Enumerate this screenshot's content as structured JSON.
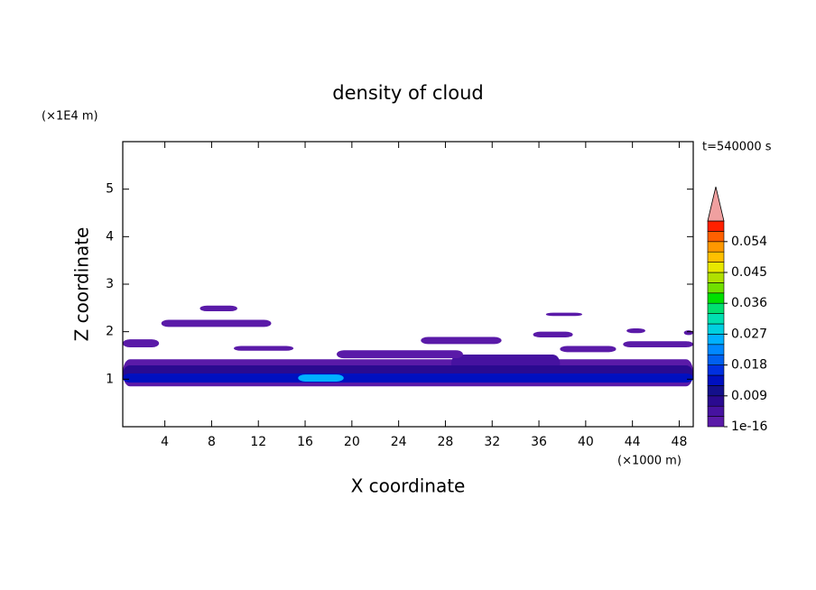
{
  "chart_data": {
    "type": "contour",
    "title": "density of cloud",
    "xlabel": "X coordinate",
    "ylabel": "Z coordinate",
    "xunit": "(×1000 m)",
    "yunit": "(×1E4 m)",
    "time_label": "t=540000 s",
    "xlim": [
      0.4,
      49.2
    ],
    "ylim": [
      0,
      6
    ],
    "xticks": [
      4,
      8,
      12,
      16,
      20,
      24,
      28,
      32,
      36,
      40,
      44,
      48
    ],
    "yticks": [
      1,
      2,
      3,
      4,
      5
    ],
    "colorbar": {
      "lim": [
        1e-16,
        0.06
      ],
      "ticks": [
        1e-16,
        0.009,
        0.018,
        0.027,
        0.036,
        0.045,
        0.054
      ],
      "colors": [
        "#5a1aa8",
        "#4612a0",
        "#2a0a90",
        "#14108c",
        "#0010c0",
        "#0030e0",
        "#0060f0",
        "#0088ff",
        "#00b0ff",
        "#00d0e0",
        "#00e0b0",
        "#00e070",
        "#00e000",
        "#70e000",
        "#b0e000",
        "#e8e800",
        "#ffc000",
        "#ff9800",
        "#ff6000",
        "#ff2000"
      ],
      "extend_color": "#f0a0a0"
    },
    "patches": [
      {
        "x0": 0.4,
        "x1": 49.2,
        "z0": 0.85,
        "z1": 1.42,
        "value": 0.001
      },
      {
        "x0": 28.5,
        "x1": 37.8,
        "z0": 1.14,
        "z1": 1.52,
        "value": 0.004
      },
      {
        "x0": 0.4,
        "x1": 49.2,
        "z0": 0.93,
        "z1": 1.29,
        "value": 0.007
      },
      {
        "x0": 0.4,
        "x1": 49.2,
        "z0": 0.93,
        "z1": 1.12,
        "value": 0.013
      },
      {
        "x0": 15.4,
        "x1": 19.3,
        "z0": 0.95,
        "z1": 1.1,
        "value": 0.025
      },
      {
        "x0": 7.0,
        "x1": 10.2,
        "z0": 2.43,
        "z1": 2.55,
        "value": 0.001
      },
      {
        "x0": 3.7,
        "x1": 13.1,
        "z0": 2.1,
        "z1": 2.25,
        "value": 0.001
      },
      {
        "x0": 0.4,
        "x1": 3.5,
        "z0": 1.67,
        "z1": 1.84,
        "value": 0.001
      },
      {
        "x0": 9.9,
        "x1": 15.0,
        "z0": 1.6,
        "z1": 1.7,
        "value": 0.001
      },
      {
        "x0": 18.7,
        "x1": 29.5,
        "z0": 1.44,
        "z1": 1.61,
        "value": 0.001
      },
      {
        "x0": 25.9,
        "x1": 32.8,
        "z0": 1.74,
        "z1": 1.89,
        "value": 0.001
      },
      {
        "x0": 35.5,
        "x1": 38.9,
        "z0": 1.88,
        "z1": 2.0,
        "value": 0.001
      },
      {
        "x0": 36.6,
        "x1": 39.7,
        "z0": 2.33,
        "z1": 2.4,
        "value": 0.001
      },
      {
        "x0": 37.8,
        "x1": 42.6,
        "z0": 1.57,
        "z1": 1.7,
        "value": 0.001
      },
      {
        "x0": 43.2,
        "x1": 49.2,
        "z0": 1.67,
        "z1": 1.8,
        "value": 0.001
      },
      {
        "x0": 43.5,
        "x1": 45.1,
        "z0": 1.97,
        "z1": 2.07,
        "value": 0.001
      },
      {
        "x0": 48.4,
        "x1": 49.2,
        "z0": 1.93,
        "z1": 2.03,
        "value": 0.001
      }
    ]
  }
}
